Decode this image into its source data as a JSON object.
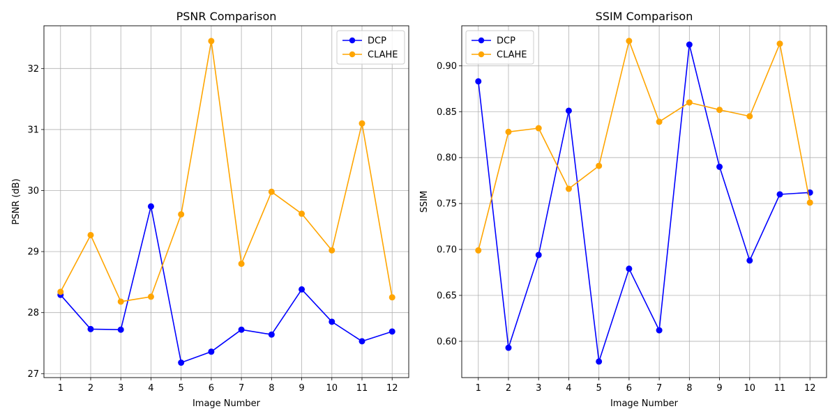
{
  "chart_data": [
    {
      "type": "line",
      "title": "PSNR Comparison",
      "xlabel": "Image Number",
      "ylabel": "PSNR (dB)",
      "x": [
        1,
        2,
        3,
        4,
        5,
        6,
        7,
        8,
        9,
        10,
        11,
        12
      ],
      "xticks": [
        "1",
        "2",
        "3",
        "4",
        "5",
        "6",
        "7",
        "8",
        "9",
        "10",
        "11",
        "12"
      ],
      "xlim": [
        0.45,
        12.55
      ],
      "ylim": [
        26.935,
        32.7
      ],
      "yticks": [
        27,
        28,
        29,
        30,
        31,
        32
      ],
      "ytick_labels": [
        "27",
        "28",
        "29",
        "30",
        "31",
        "32"
      ],
      "grid": true,
      "legend": "top-right",
      "series": [
        {
          "name": "DCP",
          "color": "#0000ff",
          "values": [
            28.29,
            27.73,
            27.72,
            29.74,
            27.18,
            27.36,
            27.72,
            27.64,
            28.38,
            27.85,
            27.53,
            27.69
          ]
        },
        {
          "name": "CLAHE",
          "color": "#ffa500",
          "values": [
            28.34,
            29.27,
            28.18,
            28.26,
            29.61,
            32.45,
            28.8,
            29.98,
            29.62,
            29.02,
            31.1,
            28.25
          ]
        }
      ]
    },
    {
      "type": "line",
      "title": "SSIM Comparison",
      "xlabel": "Image Number",
      "ylabel": "SSIM",
      "x": [
        1,
        2,
        3,
        4,
        5,
        6,
        7,
        8,
        9,
        10,
        11,
        12
      ],
      "xticks": [
        "1",
        "2",
        "3",
        "4",
        "5",
        "6",
        "7",
        "8",
        "9",
        "10",
        "11",
        "12"
      ],
      "xlim": [
        0.45,
        12.55
      ],
      "ylim": [
        0.5605,
        0.9435
      ],
      "yticks": [
        0.6,
        0.65,
        0.7,
        0.75,
        0.8,
        0.85,
        0.9
      ],
      "ytick_labels": [
        "0.60",
        "0.65",
        "0.70",
        "0.75",
        "0.80",
        "0.85",
        "0.90"
      ],
      "grid": true,
      "legend": "top-left",
      "series": [
        {
          "name": "DCP",
          "color": "#0000ff",
          "values": [
            0.883,
            0.593,
            0.694,
            0.851,
            0.578,
            0.679,
            0.612,
            0.923,
            0.79,
            0.688,
            0.76,
            0.762
          ]
        },
        {
          "name": "CLAHE",
          "color": "#ffa500",
          "values": [
            0.699,
            0.828,
            0.832,
            0.766,
            0.791,
            0.927,
            0.839,
            0.86,
            0.852,
            0.845,
            0.924,
            0.751
          ]
        }
      ]
    }
  ]
}
